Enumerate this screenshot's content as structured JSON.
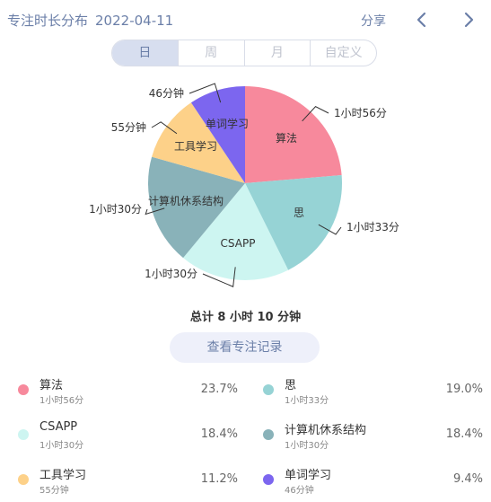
{
  "header": {
    "title": "专注时长分布",
    "date": "2022-04-11",
    "share_label": "分享",
    "prev_icon": "chevron-left-icon",
    "next_icon": "chevron-right-icon"
  },
  "tabs": [
    {
      "label": "日",
      "active": true
    },
    {
      "label": "周",
      "active": false
    },
    {
      "label": "月",
      "active": false
    },
    {
      "label": "自定义",
      "active": false
    }
  ],
  "chart_data": {
    "type": "pie",
    "slices": [
      {
        "name": "算法",
        "value": 116,
        "label": "1小时56分",
        "percent": "23.7%",
        "color": "#f7899c"
      },
      {
        "name": "思",
        "value": 93,
        "label": "1小时33分",
        "percent": "19.0%",
        "color": "#96d3d5"
      },
      {
        "name": "CSAPP",
        "value": 90,
        "label": "1小时30分",
        "percent": "18.4%",
        "color": "#cdf5f1"
      },
      {
        "name": "计算机休系结构",
        "value": 90,
        "label": "1小时30分",
        "percent": "18.4%",
        "color": "#89b2b9"
      },
      {
        "name": "工具学习",
        "value": 55,
        "label": "55分钟",
        "percent": "11.2%",
        "color": "#fdd189"
      },
      {
        "name": "单词学习",
        "value": 46,
        "label": "46分钟",
        "percent": "9.4%",
        "color": "#7c66ef"
      }
    ]
  },
  "summary": {
    "total_label": "总计 8 小时 10 分钟",
    "view_records_label": "查看专注记录"
  }
}
